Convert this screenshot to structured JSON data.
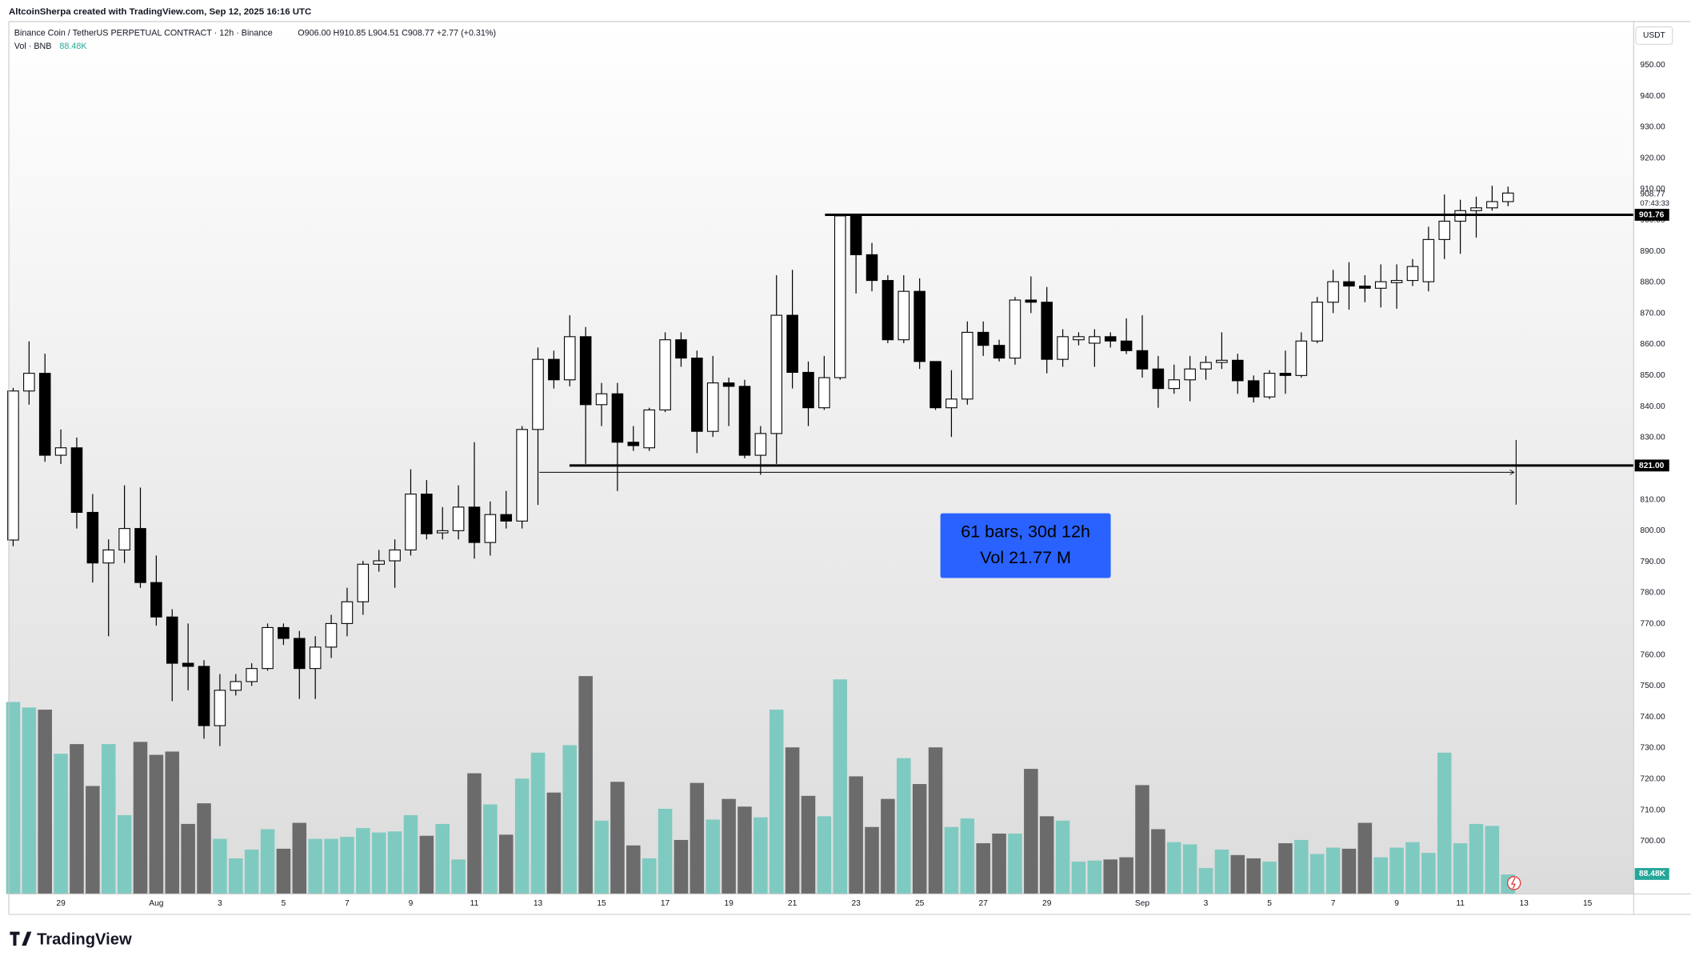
{
  "header": {
    "credit": "AltcoinSherpa created with TradingView.com, Sep 12, 2025 16:16 UTC",
    "logo": "TradingView"
  },
  "chart_data": {
    "type": "candlestick",
    "title": "Binance Coin / TetherUS PERPETUAL CONTRACT · 12h · Binance",
    "ohlc_legend": "O906.00 H910.85 L904.51 C908.77 +2.77 (+0.31%)",
    "volume_legend": "Vol · BNB",
    "volume_label": "88.48K",
    "currency": "USDT",
    "countdown": "07:43:33",
    "annotations": [
      "61 bars, 30d 12h",
      "Vol 21.77 M"
    ],
    "categories": [
      null,
      null,
      null,
      "29",
      null,
      null,
      null,
      null,
      null,
      "Aug",
      null,
      null,
      null,
      "3",
      null,
      null,
      null,
      "5",
      null,
      null,
      null,
      "7",
      null,
      null,
      null,
      "9",
      null,
      null,
      null,
      "11",
      null,
      null,
      null,
      "13",
      null,
      null,
      null,
      "15",
      null,
      null,
      null,
      "17",
      null,
      null,
      null,
      "19",
      null,
      null,
      null,
      "21",
      null,
      null,
      null,
      "23",
      null,
      null,
      null,
      "25",
      null,
      null,
      null,
      "27",
      null,
      null,
      null,
      "29",
      null,
      null,
      null,
      null,
      null,
      "Sep",
      null,
      null,
      null,
      "3",
      null,
      null,
      null,
      "5",
      null,
      null,
      null,
      "7",
      null,
      null,
      null,
      "9",
      null,
      null,
      null,
      "11",
      null,
      null,
      null,
      "13",
      null,
      null,
      null,
      "15",
      null,
      null
    ],
    "open": [
      797,
      845,
      850.7,
      824.3,
      826.7,
      805.9,
      789.6,
      793.8,
      800.7,
      783.3,
      772.2,
      757.3,
      756.3,
      737.2,
      748.6,
      751.4,
      755.6,
      768.8,
      765.3,
      755.6,
      762.5,
      770.1,
      777.1,
      789.2,
      790.3,
      793.8,
      811.8,
      799.3,
      800,
      807.6,
      796.2,
      805.2,
      803.1,
      832.6,
      855.2,
      848.6,
      862.5,
      840.6,
      844.1,
      828.5,
      826.7,
      838.9,
      861.5,
      855.6,
      832,
      847.6,
      846.5,
      824.3,
      831.3,
      869.4,
      851,
      839.6,
      849.3,
      901.4,
      888.9,
      880.6,
      861.5,
      877.1,
      854.5,
      839.6,
      842.4,
      863.9,
      859.7,
      855.6,
      874.3,
      873.6,
      855.2,
      861.5,
      860.4,
      862.5,
      861.1,
      858,
      852.1,
      845.8,
      848.6,
      852.1,
      854.2,
      854.9,
      848.3,
      843.1,
      850.7,
      850,
      861.1,
      873.6,
      880.2,
      878.8,
      878.1,
      879.9,
      880.6,
      880.2,
      893.8,
      899.7,
      903.1,
      904,
      906,
      null,
      null,
      null,
      null,
      null,
      null,
      null
    ],
    "high": [
      846,
      861,
      857,
      832.6,
      830,
      811.8,
      797.2,
      814.6,
      813.9,
      792,
      774.7,
      770.1,
      758.3,
      753.8,
      753.8,
      757.3,
      770.1,
      770.1,
      767.7,
      766,
      772.9,
      781.6,
      790.3,
      793.8,
      797.2,
      819.8,
      816.3,
      807.6,
      814.6,
      828.5,
      809.4,
      812.8,
      833.7,
      859,
      858,
      869.4,
      865.6,
      847.6,
      847.6,
      833.7,
      839.6,
      863.9,
      863.9,
      858,
      856.3,
      849.3,
      848.6,
      833.7,
      882.3,
      884,
      854.5,
      856.3,
      902.1,
      901.4,
      892.7,
      882.3,
      882.3,
      881.3,
      854.5,
      851.7,
      867.4,
      867.4,
      861.5,
      875.3,
      881.9,
      878.5,
      864.9,
      863.9,
      864.9,
      863.9,
      868.4,
      869.4,
      856.3,
      853.5,
      856.3,
      856.3,
      863.9,
      857,
      850,
      851.7,
      858,
      863.9,
      875.3,
      884,
      886.5,
      882.3,
      885.8,
      885.8,
      887.5,
      897.9,
      908.3,
      906.6,
      907.6,
      911.1,
      910.85,
      null,
      null,
      null,
      null,
      null,
      null,
      null
    ],
    "low": [
      795,
      840.6,
      822.2,
      821.5,
      800.7,
      783.3,
      766,
      789.6,
      781.6,
      769.4,
      745.1,
      748.6,
      733,
      730.6,
      746.9,
      750,
      754.9,
      763.2,
      745.8,
      745.8,
      759,
      766,
      772.9,
      786.8,
      781.6,
      792,
      797.2,
      797.2,
      797.2,
      791,
      792,
      800.7,
      800.7,
      808.3,
      845.8,
      846.5,
      821.5,
      833.7,
      812.8,
      825.7,
      825.7,
      838.2,
      852.8,
      825,
      830.2,
      833.7,
      823.3,
      818,
      821.5,
      845.8,
      833.7,
      838.9,
      848.6,
      876.4,
      877.1,
      860.4,
      860.4,
      852.1,
      838.9,
      830.2,
      840.6,
      856.3,
      854.5,
      853.5,
      870.1,
      850.7,
      852.8,
      859.7,
      852.8,
      859,
      856.9,
      849.3,
      839.6,
      844.1,
      841.7,
      848.6,
      852.1,
      844.1,
      841.3,
      842.4,
      844.1,
      849.3,
      860.4,
      870.1,
      871.2,
      873.6,
      871.9,
      871.5,
      878.8,
      877.1,
      887.5,
      889.2,
      894.4,
      903.1,
      904.51,
      null,
      null,
      null,
      null,
      null,
      null,
      null
    ],
    "close": [
      845,
      850.7,
      824.3,
      826.7,
      805.9,
      789.6,
      793.8,
      800.7,
      783.3,
      772.2,
      757.3,
      756.3,
      737.2,
      748.6,
      751.4,
      755.6,
      768.8,
      765.3,
      755.6,
      762.5,
      770.1,
      777.1,
      789.2,
      790.3,
      793.8,
      811.8,
      799,
      800,
      807.6,
      796.2,
      805.2,
      803.1,
      832.6,
      855.2,
      848.6,
      862.5,
      840.6,
      844.1,
      828.5,
      827.4,
      838.9,
      861.5,
      855.6,
      832,
      847.6,
      846.5,
      824.3,
      831.3,
      869.4,
      851,
      839.6,
      849.3,
      901.4,
      888.9,
      880.6,
      861.5,
      877.1,
      854.5,
      839.6,
      842.4,
      863.9,
      859.7,
      855.6,
      874.3,
      873.6,
      855.2,
      862.5,
      862.5,
      862.5,
      861.1,
      858,
      852.1,
      845.8,
      848.6,
      852.1,
      854.2,
      854.9,
      848.3,
      843.1,
      850.7,
      850,
      861.1,
      873.6,
      880.2,
      878.8,
      878.1,
      880.2,
      880.6,
      885.1,
      893.8,
      899.7,
      903.1,
      904,
      906,
      908.77,
      null,
      null,
      null,
      null,
      null,
      null,
      null
    ],
    "volume": [
      875000,
      850000,
      840000,
      639000,
      683000,
      492000,
      683000,
      359000,
      693000,
      634000,
      649000,
      319000,
      413000,
      251000,
      162000,
      202000,
      295000,
      206000,
      324000,
      251000,
      251000,
      260000,
      300000,
      280000,
      285000,
      359000,
      265000,
      319000,
      157000,
      550000,
      408000,
      270000,
      526000,
      644000,
      462000,
      678000,
      993000,
      334000,
      511000,
      221000,
      162000,
      388000,
      246000,
      506000,
      339000,
      433000,
      398000,
      349000,
      840000,
      668000,
      447000,
      354000,
      978000,
      536000,
      305000,
      433000,
      619000,
      501000,
      668000,
      305000,
      344000,
      231000,
      275000,
      275000,
      570000,
      354000,
      334000,
      147000,
      152000,
      157000,
      167000,
      496000,
      295000,
      236000,
      226000,
      118000,
      202000,
      177000,
      162000,
      147000,
      231000,
      246000,
      182000,
      211000,
      206000,
      324000,
      167000,
      211000,
      236000,
      187000,
      644000,
      231000,
      319000,
      310000,
      88480,
      null,
      null,
      null,
      null,
      null,
      null,
      null
    ],
    "up_color": "#ffffff",
    "down_color": "#000000",
    "volume_up_color": "#7fcac0",
    "volume_down_color": "#6b6b6b",
    "levels": [
      901.76,
      {
        "value": 821,
        "label": "821.00"
      }
    ],
    "ylim": [
      683,
      964
    ],
    "yticks": [
      {
        "value": 700,
        "label": "700.00"
      },
      {
        "value": 710,
        "label": "710.00"
      },
      {
        "value": 720,
        "label": "720.00"
      },
      {
        "value": 730,
        "label": "730.00"
      },
      {
        "value": 740,
        "label": "740.00"
      },
      {
        "value": 750,
        "label": "750.00"
      },
      {
        "value": 760,
        "label": "760.00"
      },
      {
        "value": 770,
        "label": "770.00"
      },
      {
        "value": 780,
        "label": "780.00"
      },
      {
        "value": 790,
        "label": "790.00"
      },
      {
        "value": 800,
        "label": "800.00"
      },
      {
        "value": 810,
        "label": "810.00"
      },
      {
        "value": 820,
        "label": "820.00"
      },
      {
        "value": 830,
        "label": "830.00"
      },
      {
        "value": 840,
        "label": "840.00"
      },
      {
        "value": 850,
        "label": "850.00"
      },
      {
        "value": 860,
        "label": "860.00"
      },
      {
        "value": 870,
        "label": "870.00"
      },
      {
        "value": 880,
        "label": "880.00"
      },
      {
        "value": 890,
        "label": "890.00"
      },
      {
        "value": 900,
        "label": "900.00"
      },
      {
        "value": 910,
        "label": "910.00"
      },
      {
        "value": 920,
        "label": "920.00"
      },
      {
        "value": 930,
        "label": "930.00"
      },
      {
        "value": 940,
        "label": "940.00"
      },
      {
        "value": 950,
        "label": "950.00"
      }
    ],
    "grid": false
  }
}
